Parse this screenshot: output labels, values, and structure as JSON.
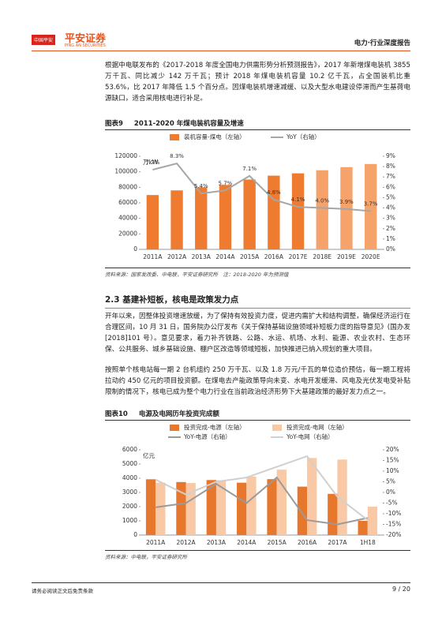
{
  "header": {
    "badge": "中国平安",
    "logo_cn": "平安证券",
    "logo_en": "PING AN SECURITIES",
    "report": "电力·行业深度报告"
  },
  "intro": "根据中电联发布的《2017-2018 年度全国电力供需形势分析预测报告》，2017 年新增煤电装机 3855 万千瓦、同比减少 142 万千瓦；预计 2018 年煤电装机容量 10.2 亿千瓦，占全国装机比重 53.6%，比 2017 年降低 1.5 个百分点。因煤电装机增速减缓、以及大型水电建设停滞而产生基荷电源缺口，适合采用核电进行补足。",
  "figures": [
    {
      "label": "图表9",
      "title": "2011-2020 年煤电装机容量及增速",
      "source": "资料来源：国家发改委、中电联，平安证券研究所　注：2018-2020 年为预测值"
    },
    {
      "label": "图表10",
      "title": "电源及电网历年投资完成额",
      "source": "资料来源：中电联，平安证券研究所"
    }
  ],
  "section": {
    "heading": "2.3 基建补短板，核电是政策发力点",
    "paragraphs": [
      "开年以来，因整体投资增速放缓，为了保持有效投资力度，促进内需扩大和结构调整，确保经济运行在合理区间，10 月 31 日，国务院办公厅发布《关于保持基础设施领域补短板力度的指导意见》(国办发[2018]101 号）。意见要求，着力补齐铁路、公路、水运、机场、水利、能源、农业农村、生态环保、公共服务、城乡基础设施、棚户区改造等领域短板，加快推进已纳入规划的重大项目。",
      "按照单个核电站每一期 2 台机组约 250 万千瓦、以及 1.8 万元/千瓦的单位造价预估，每一期工程将拉动约 450 亿元的项目投资额。在煤电去产能政策导向未变、水电开发缓滞、风电及光伏发电受补贴限制的情况下，核电已成为整个电力行业在当前政治经济形势下大基建政策的最好发力点之一。"
    ]
  },
  "footer": {
    "disclaimer": "请务必阅读正文后免责条款",
    "page": "9 / 20"
  },
  "chart_data": [
    {
      "type": "bar",
      "ylabel": "万kW",
      "categories": [
        "2011A",
        "2012A",
        "2013A",
        "2014A",
        "2015A",
        "2016A",
        "2017E",
        "2018E",
        "2019E",
        "2020E"
      ],
      "series": [
        {
          "name": "装机容量-煤电（左轴）",
          "color": "#ee7b30",
          "colors": [
            "#ee7b30",
            "#ee7b30",
            "#ee7b30",
            "#ee7b30",
            "#ee7b30",
            "#ee7b30",
            "#ee7b30",
            "#f5a36a",
            "#f5a36a",
            "#f5a36a"
          ],
          "values": [
            70000,
            76000,
            80000,
            83000,
            90000,
            95000,
            98000,
            102000,
            106000,
            110000
          ]
        },
        {
          "name": "YoY（右轴）",
          "type": "line",
          "axis": "y2",
          "color": "#a6a6a6",
          "values": [
            7.7,
            8.3,
            5.4,
            5.7,
            7.1,
            4.8,
            4.1,
            4.0,
            3.9,
            3.7
          ],
          "value_labels": [
            "7.7%",
            "8.3%",
            "5.4%",
            "5.7%",
            "7.1%",
            "4.8%",
            "4.1%",
            "4.0%",
            "3.9%",
            "3.7%"
          ]
        }
      ],
      "ylim": [
        0,
        120000
      ],
      "yticks": [
        0,
        20000,
        40000,
        60000,
        80000,
        100000,
        120000
      ],
      "y2lim": [
        0,
        9
      ],
      "y2ticks": [
        {
          "value": 0,
          "label": "0%"
        },
        {
          "value": 1,
          "label": "1%"
        },
        {
          "value": 2,
          "label": "2%"
        },
        {
          "value": 3,
          "label": "3%"
        },
        {
          "value": 4,
          "label": "4%"
        },
        {
          "value": 5,
          "label": "5%"
        },
        {
          "value": 6,
          "label": "6%"
        },
        {
          "value": 7,
          "label": "7%"
        },
        {
          "value": 8,
          "label": "8%"
        },
        {
          "value": 9,
          "label": "9%"
        }
      ]
    },
    {
      "type": "bar",
      "ylabel": "亿元",
      "categories": [
        "2011A",
        "2012A",
        "2013A",
        "2014A",
        "2015A",
        "2016A",
        "2017A",
        "1H18"
      ],
      "series": [
        {
          "name": "投资完成-电源（左轴）",
          "color": "#e8772e",
          "values": [
            3927,
            3732,
            3872,
            3686,
            3936,
            3408,
            2900,
            1000
          ]
        },
        {
          "name": "投资完成-电网（左轴）",
          "color": "#f8c9a4",
          "values": [
            3687,
            3661,
            3856,
            4118,
            4603,
            5426,
            5315,
            2000
          ]
        },
        {
          "name": "YoY-电源（右轴）",
          "type": "line",
          "axis": "y2",
          "color": "#9a9a9a",
          "values": [
            -7,
            -5,
            4,
            -5,
            7,
            -13,
            -15,
            -12
          ]
        },
        {
          "name": "YoY-电网（右轴）",
          "type": "line",
          "axis": "y2",
          "color": "#d0d0d0",
          "values": [
            6,
            -1,
            5,
            7,
            12,
            17,
            -2,
            -13
          ]
        }
      ],
      "ylim": [
        0,
        6000
      ],
      "yticks": [
        0,
        1000,
        2000,
        3000,
        4000,
        5000,
        6000
      ],
      "y2lim": [
        -20,
        20
      ],
      "y2ticks": [
        {
          "value": -20,
          "label": "-20%"
        },
        {
          "value": -15,
          "label": "-15%"
        },
        {
          "value": -10,
          "label": "-10%"
        },
        {
          "value": -5,
          "label": "-5%"
        },
        {
          "value": 0,
          "label": "0%"
        },
        {
          "value": 5,
          "label": "5%"
        },
        {
          "value": 10,
          "label": "10%"
        },
        {
          "value": 15,
          "label": "15%"
        },
        {
          "value": 20,
          "label": "20%"
        }
      ]
    }
  ]
}
